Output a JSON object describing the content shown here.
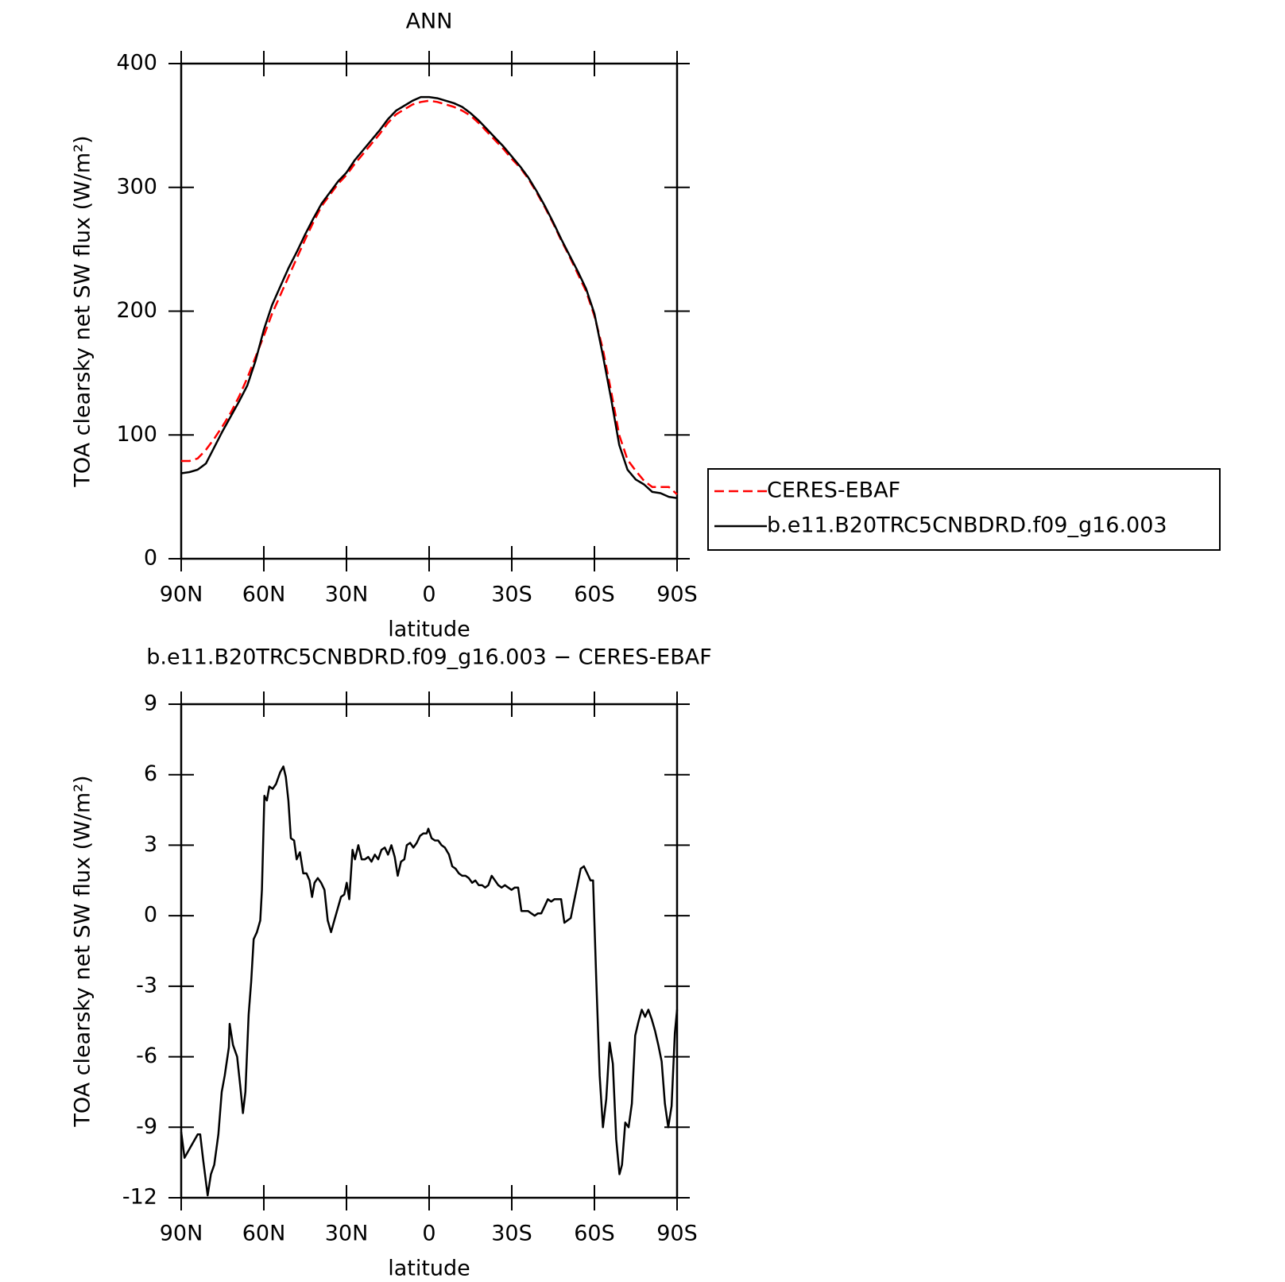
{
  "chart_data": [
    {
      "type": "line",
      "title": "ANN",
      "xlabel": "latitude",
      "ylabel": "TOA clearsky net SW flux (W/m²)",
      "x": [
        90,
        87,
        84,
        81,
        78,
        75,
        72,
        69,
        66,
        63,
        60,
        57,
        54,
        51,
        48,
        45,
        42,
        39,
        36,
        33,
        30,
        27,
        24,
        21,
        18,
        15,
        12,
        9,
        6,
        3,
        0,
        -3,
        -6,
        -9,
        -12,
        -15,
        -18,
        -21,
        -24,
        -27,
        -30,
        -33,
        -36,
        -39,
        -42,
        -45,
        -48,
        -51,
        -54,
        -57,
        -60,
        -63,
        -66,
        -69,
        -72,
        -75,
        -78,
        -81,
        -84,
        -87,
        -90
      ],
      "series": [
        {
          "name": "CERES-EBAF",
          "color": "#ff0000",
          "dashed": true,
          "values": [
            79,
            79,
            81,
            88,
            97,
            107,
            118,
            131,
            146,
            163,
            180,
            198,
            213,
            228,
            243,
            258,
            272,
            285,
            294,
            303,
            310,
            319,
            327,
            335,
            343,
            352,
            359,
            363,
            367,
            369,
            370,
            369,
            367,
            365,
            362,
            358,
            352,
            345,
            338,
            331,
            323,
            316,
            307,
            296,
            284,
            271,
            257,
            244,
            230,
            216,
            196,
            170,
            136,
            100,
            80,
            71,
            63,
            58,
            58,
            58,
            52
          ]
        },
        {
          "name": "b.e11.B20TRC5CNBDRD.f09_g16.003",
          "color": "#000000",
          "dashed": false,
          "values": [
            69,
            70,
            72,
            77,
            90,
            103,
            115,
            127,
            140,
            160,
            185,
            205,
            220,
            235,
            248,
            262,
            275,
            287,
            296,
            305,
            312,
            322,
            330,
            338,
            346,
            355,
            362,
            366,
            370,
            373,
            373,
            372,
            370,
            368,
            365,
            360,
            354,
            347,
            340,
            333,
            325,
            317,
            308,
            297,
            285,
            272,
            258,
            245,
            232,
            218,
            198,
            165,
            130,
            92,
            72,
            64,
            60,
            54,
            53,
            50,
            49
          ]
        }
      ],
      "xlim": [
        90,
        -90
      ],
      "xticks": [
        {
          "value": 90,
          "label": "90N"
        },
        {
          "value": 60,
          "label": "60N"
        },
        {
          "value": 30,
          "label": "30N"
        },
        0,
        {
          "value": -30,
          "label": "30S"
        },
        {
          "value": -60,
          "label": "60S"
        },
        {
          "value": -90,
          "label": "90S"
        }
      ],
      "ylim": [
        0,
        400
      ],
      "yticks": [
        0,
        100,
        200,
        300,
        400
      ],
      "legend": "right"
    },
    {
      "type": "line",
      "title": "b.e11.B20TRC5CNBDRD.f09_g16.003 − CERES-EBAF",
      "xlabel": "latitude",
      "ylabel": "TOA clearsky net SW flux (W/m²)",
      "color": "#000000",
      "x": [
        90,
        88.8,
        86.4,
        84,
        83.1,
        82,
        80.4,
        79.2,
        78,
        76.5,
        75.3,
        74.2,
        72.7,
        72.4,
        71.2,
        69.7,
        68.5,
        67.6,
        66.7,
        65.5,
        64.6,
        63.7,
        62.5,
        61.3,
        60.7,
        59.8,
        58.9,
        58,
        56.8,
        55.6,
        54.1,
        52.9,
        52,
        51.1,
        50.2,
        49,
        48.1,
        46.9,
        45.7,
        44.5,
        43.4,
        42.5,
        41.6,
        40.4,
        39.2,
        38,
        36.8,
        35.6,
        34.4,
        33.2,
        32,
        30.8,
        29.9,
        29,
        27.8,
        26.9,
        25.7,
        24.5,
        23.3,
        22.1,
        20.9,
        19.7,
        18.5,
        17.3,
        16.1,
        14.9,
        13.7,
        12.5,
        11.4,
        10.2,
        9,
        8.1,
        6.9,
        5.7,
        4.5,
        3.3,
        2.1,
        0.9,
        0.3,
        -0.9,
        -2.1,
        -3.3,
        -4.5,
        -5.7,
        -7.2,
        -8.4,
        -9.6,
        -10.8,
        -12,
        -13.2,
        -14.4,
        -15.6,
        -16.8,
        -18,
        -19.2,
        -20.3,
        -21.5,
        -22.7,
        -23.9,
        -25.1,
        -26.3,
        -27.5,
        -28.7,
        -29.9,
        -31.1,
        -32.3,
        -33.5,
        -34.7,
        -35.9,
        -37.1,
        -38.3,
        -39.5,
        -40.7,
        -41.9,
        -43.1,
        -44.3,
        -45.5,
        -46.7,
        -47.9,
        -49.1,
        -50.2,
        -51.4,
        -52.6,
        -53.8,
        -55,
        -56.2,
        -57.4,
        -58.6,
        -59.5,
        -60.7,
        -61.9,
        -63.1,
        -64.3,
        -65.5,
        -66.7,
        -67.9,
        -69.1,
        -70,
        -71.2,
        -72.4,
        -73.6,
        -74.8,
        -76,
        -77.2,
        -78.4,
        -79.6,
        -80.8,
        -82,
        -83.2,
        -84.4,
        -85.6,
        -86.8,
        -88,
        -89.2,
        -90
      ],
      "values": [
        -9.2,
        -10.3,
        -9.8,
        -9.3,
        -9.3,
        -10.4,
        -11.9,
        -11,
        -10.6,
        -9.3,
        -7.5,
        -6.8,
        -5.6,
        -4.6,
        -5.5,
        -6,
        -7.3,
        -8.4,
        -7.5,
        -4.2,
        -2.8,
        -1,
        -0.7,
        -0.2,
        1.1,
        5.1,
        4.9,
        5.5,
        5.4,
        5.6,
        6.1,
        6.35,
        5.9,
        4.9,
        3.3,
        3.2,
        2.4,
        2.7,
        1.8,
        1.8,
        1.5,
        0.8,
        1.4,
        1.6,
        1.4,
        1.1,
        -0.2,
        -0.7,
        -0.2,
        0.3,
        0.8,
        0.9,
        1.4,
        0.7,
        2.8,
        2.4,
        3,
        2.4,
        2.4,
        2.5,
        2.3,
        2.6,
        2.4,
        2.8,
        2.9,
        2.6,
        3,
        2.5,
        1.7,
        2.3,
        2.4,
        3,
        3.1,
        2.9,
        3.1,
        3.4,
        3.5,
        3.5,
        3.7,
        3.3,
        3.2,
        3.2,
        3,
        2.9,
        2.6,
        2.1,
        2,
        1.8,
        1.7,
        1.7,
        1.6,
        1.4,
        1.5,
        1.3,
        1.3,
        1.2,
        1.3,
        1.7,
        1.5,
        1.3,
        1.2,
        1.3,
        1.2,
        1.1,
        1.2,
        1.2,
        0.2,
        0.2,
        0.2,
        0.1,
        0,
        0.1,
        0.1,
        0.4,
        0.7,
        0.6,
        0.7,
        0.7,
        0.7,
        -0.3,
        -0.2,
        -0.1,
        0.6,
        1.3,
        2,
        2.1,
        1.8,
        1.5,
        1.5,
        -2.8,
        -6.8,
        -9,
        -7.8,
        -5.4,
        -6.3,
        -9.5,
        -11,
        -10.6,
        -8.8,
        -9,
        -8,
        -5.1,
        -4.5,
        -4,
        -4.3,
        -4,
        -4.4,
        -4.9,
        -5.5,
        -6.2,
        -8,
        -9,
        -8.1,
        -5,
        -4
      ],
      "xlim": [
        90,
        -90
      ],
      "xticks": [
        {
          "value": 90,
          "label": "90N"
        },
        {
          "value": 60,
          "label": "60N"
        },
        {
          "value": 30,
          "label": "30N"
        },
        0,
        {
          "value": -30,
          "label": "30S"
        },
        {
          "value": -60,
          "label": "60S"
        },
        {
          "value": -90,
          "label": "90S"
        }
      ],
      "ylim": [
        -12,
        9
      ],
      "yticks": [
        -12,
        -9,
        -6,
        -3,
        0,
        3,
        6,
        9
      ]
    }
  ]
}
